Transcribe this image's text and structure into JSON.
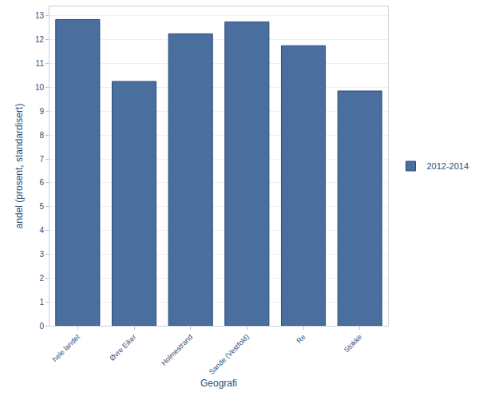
{
  "chart_data": {
    "type": "bar",
    "x_label": "Geografi",
    "y_label": "andel (prosent, standardisert)",
    "categories": [
      "hele landet",
      "Øvre Eiker",
      "Holmestrand",
      "Sande (Vestfold)",
      "Re",
      "Stokke"
    ],
    "series": [
      {
        "name": "2012-2014",
        "color": "#4a6f9f",
        "values": [
          12.85,
          10.25,
          12.25,
          12.75,
          11.75,
          9.85
        ]
      }
    ],
    "ylim": [
      0,
      13.4
    ],
    "yticks": [
      0,
      1,
      2,
      3,
      4,
      5,
      6,
      7,
      8,
      9,
      10,
      11,
      12,
      13
    ],
    "grid": true,
    "legend": "right"
  }
}
